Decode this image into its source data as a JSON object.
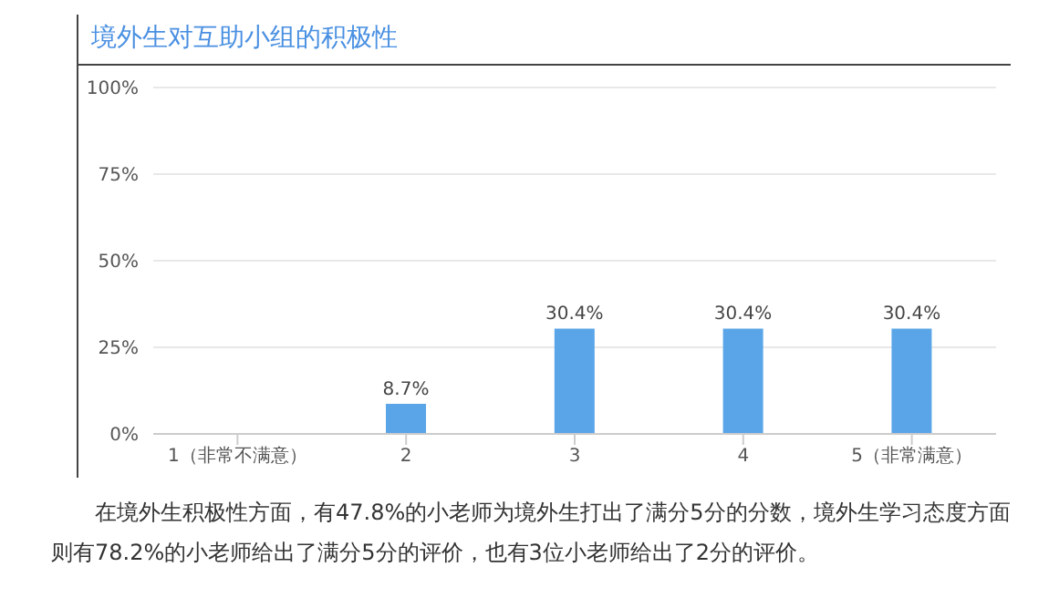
{
  "chart_data": {
    "type": "bar",
    "title": "境外生对互助小组的积极性",
    "categories": [
      "1（非常不满意）",
      "2",
      "3",
      "4",
      "5（非常满意）"
    ],
    "values": [
      0,
      8.7,
      30.4,
      30.4,
      30.4
    ],
    "value_labels": [
      null,
      "8.7%",
      "30.4%",
      "30.4%",
      "30.4%"
    ],
    "color": "#5aa5e8",
    "ylim": [
      0,
      100
    ],
    "yticks": [
      {
        "value": 0,
        "label": "0%"
      },
      {
        "value": 25,
        "label": "25%"
      },
      {
        "value": 50,
        "label": "50%"
      },
      {
        "value": 75,
        "label": "75%"
      },
      {
        "value": 100,
        "label": "100%"
      }
    ],
    "grid": "y",
    "annotations": [
      "在境外生积极性方面，有47.8%的小老师为境外生打出了满分5分的分数，境外生学习态度方面则有78.2%的小老师给出了满分5分的评价，也有3位小老师给出了2分的评价。"
    ]
  }
}
